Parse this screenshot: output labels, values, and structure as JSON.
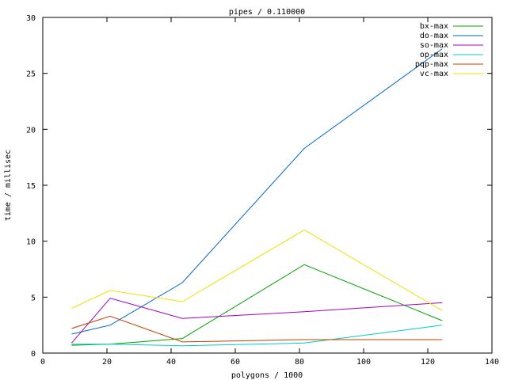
{
  "chart_data": {
    "type": "line",
    "title": "pipes / 0.110000",
    "xlabel": "polygons / 1000",
    "ylabel": "time / millisec",
    "xlim": [
      0,
      140
    ],
    "ylim": [
      0,
      30
    ],
    "xticks": [
      0,
      20,
      40,
      60,
      80,
      100,
      120,
      140
    ],
    "yticks": [
      0,
      5,
      10,
      15,
      20,
      25,
      30
    ],
    "grid": false,
    "legend_position": "top-right",
    "series": [
      {
        "name": "bx-max",
        "color": "#00a000",
        "x": [
          9,
          21,
          43.5,
          81.5,
          124.5
        ],
        "y": [
          0.7,
          0.8,
          1.3,
          7.9,
          2.9
        ]
      },
      {
        "name": "do-max",
        "color": "#0066cc",
        "x": [
          9,
          21,
          43.5,
          81.5,
          124.5
        ],
        "y": [
          1.7,
          2.5,
          6.3,
          18.3,
          27.2
        ]
      },
      {
        "name": "so-max",
        "color": "#a000c0",
        "x": [
          9,
          21,
          43.5,
          81.5,
          124.5
        ],
        "y": [
          0.9,
          4.9,
          3.1,
          3.7,
          4.5
        ]
      },
      {
        "name": "op-max",
        "color": "#00cccc",
        "x": [
          9,
          21,
          43.5,
          81.5,
          124.5
        ],
        "y": [
          0.8,
          0.8,
          0.65,
          0.9,
          2.5
        ]
      },
      {
        "name": "pqp-max",
        "color": "#c04000",
        "x": [
          9,
          21,
          43.5,
          81.5,
          124.5
        ],
        "y": [
          2.2,
          3.3,
          1.0,
          1.2,
          1.2
        ]
      },
      {
        "name": "vc-max",
        "color": "#f0e000",
        "x": [
          9,
          21,
          43.5,
          81.5,
          124.5
        ],
        "y": [
          4.0,
          5.6,
          4.6,
          11.0,
          3.8
        ]
      }
    ]
  }
}
